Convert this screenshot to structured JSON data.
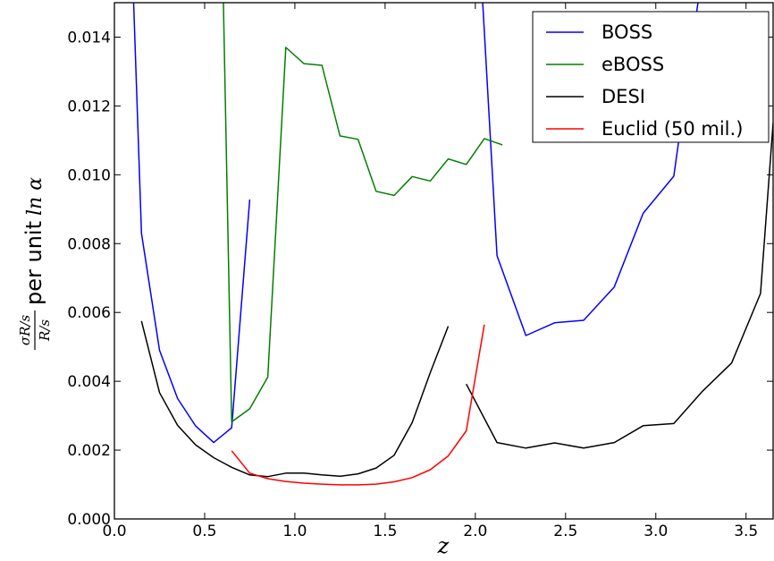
{
  "chart_data": {
    "type": "line",
    "xlabel": "z",
    "ylabel": {
      "num": "σR/s",
      "den": "R/s",
      "text": "per unit",
      "suffix": "ln α"
    },
    "xlim": [
      0.0,
      3.65
    ],
    "ylim": [
      0.0,
      0.015
    ],
    "xticks": [
      0.0,
      0.5,
      1.0,
      1.5,
      2.0,
      2.5,
      3.0,
      3.5
    ],
    "xtick_labels": [
      "0.0",
      "0.5",
      "1.0",
      "1.5",
      "2.0",
      "2.5",
      "3.0",
      "3.5"
    ],
    "yticks": [
      0.0,
      0.002,
      0.004,
      0.006,
      0.008,
      0.01,
      0.012,
      0.014
    ],
    "ytick_labels": [
      "0.000",
      "0.002",
      "0.004",
      "0.006",
      "0.008",
      "0.010",
      "0.012",
      "0.014"
    ],
    "grid": false,
    "legend_position": "top-right",
    "series": [
      {
        "name": "BOSS",
        "color": "#0000ff",
        "segments": [
          [
            [
              0.1,
              0.016
            ],
            [
              0.15,
              0.0083
            ],
            [
              0.2,
              0.0066
            ],
            [
              0.25,
              0.0049
            ],
            [
              0.35,
              0.0035
            ],
            [
              0.45,
              0.0027
            ],
            [
              0.55,
              0.00222
            ],
            [
              0.65,
              0.00265
            ],
            [
              0.75,
              0.00928
            ]
          ],
          [
            [
              2.03,
              0.016
            ],
            [
              2.12,
              0.00765
            ],
            [
              2.28,
              0.00533
            ],
            [
              2.44,
              0.0057
            ],
            [
              2.6,
              0.00577
            ],
            [
              2.77,
              0.00674
            ],
            [
              2.93,
              0.00888
            ],
            [
              3.1,
              0.00996
            ],
            [
              3.26,
              0.016
            ]
          ]
        ]
      },
      {
        "name": "eBOSS",
        "color": "#008000",
        "segments": [
          [
            [
              0.6,
              0.016
            ],
            [
              0.65,
              0.00282
            ],
            [
              0.75,
              0.0032
            ],
            [
              0.85,
              0.00412
            ],
            [
              0.95,
              0.0137
            ],
            [
              1.05,
              0.01323
            ],
            [
              1.15,
              0.01318
            ],
            [
              1.25,
              0.01113
            ],
            [
              1.35,
              0.01103
            ],
            [
              1.45,
              0.00952
            ],
            [
              1.55,
              0.0094
            ],
            [
              1.65,
              0.00995
            ],
            [
              1.75,
              0.00982
            ],
            [
              1.85,
              0.01046
            ],
            [
              1.95,
              0.0103
            ],
            [
              2.05,
              0.01105
            ],
            [
              2.15,
              0.01087
            ]
          ]
        ]
      },
      {
        "name": "DESI",
        "color": "#000000",
        "segments": [
          [
            [
              0.15,
              0.00575
            ],
            [
              0.25,
              0.00367
            ],
            [
              0.35,
              0.00272
            ],
            [
              0.45,
              0.00215
            ],
            [
              0.55,
              0.00178
            ],
            [
              0.65,
              0.0015
            ],
            [
              0.75,
              0.00128
            ],
            [
              0.85,
              0.00123
            ],
            [
              0.95,
              0.00133
            ],
            [
              1.05,
              0.00133
            ],
            [
              1.15,
              0.00128
            ],
            [
              1.25,
              0.00124
            ],
            [
              1.35,
              0.00131
            ],
            [
              1.45,
              0.00148
            ],
            [
              1.55,
              0.00185
            ],
            [
              1.65,
              0.0028
            ],
            [
              1.75,
              0.00425
            ],
            [
              1.85,
              0.0056
            ]
          ],
          [
            [
              1.95,
              0.00392
            ],
            [
              2.12,
              0.00222
            ],
            [
              2.28,
              0.00206
            ],
            [
              2.44,
              0.00221
            ],
            [
              2.6,
              0.00206
            ],
            [
              2.77,
              0.00222
            ],
            [
              2.93,
              0.00271
            ],
            [
              3.1,
              0.00277
            ],
            [
              3.26,
              0.00372
            ],
            [
              3.42,
              0.00453
            ],
            [
              3.58,
              0.00655
            ],
            [
              3.65,
              0.0115
            ]
          ]
        ]
      },
      {
        "name": "Euclid (50 mil.)",
        "color": "#ff0000",
        "segments": [
          [
            [
              0.65,
              0.00198
            ],
            [
              0.75,
              0.00133
            ],
            [
              0.85,
              0.00117
            ],
            [
              0.95,
              0.00109
            ],
            [
              1.05,
              0.00104
            ],
            [
              1.15,
              0.00101
            ],
            [
              1.25,
              0.00099
            ],
            [
              1.35,
              0.00099
            ],
            [
              1.45,
              0.00101
            ],
            [
              1.55,
              0.00108
            ],
            [
              1.65,
              0.0012
            ],
            [
              1.75,
              0.00143
            ],
            [
              1.85,
              0.00183
            ],
            [
              1.95,
              0.00256
            ],
            [
              2.05,
              0.00565
            ]
          ]
        ]
      }
    ]
  }
}
